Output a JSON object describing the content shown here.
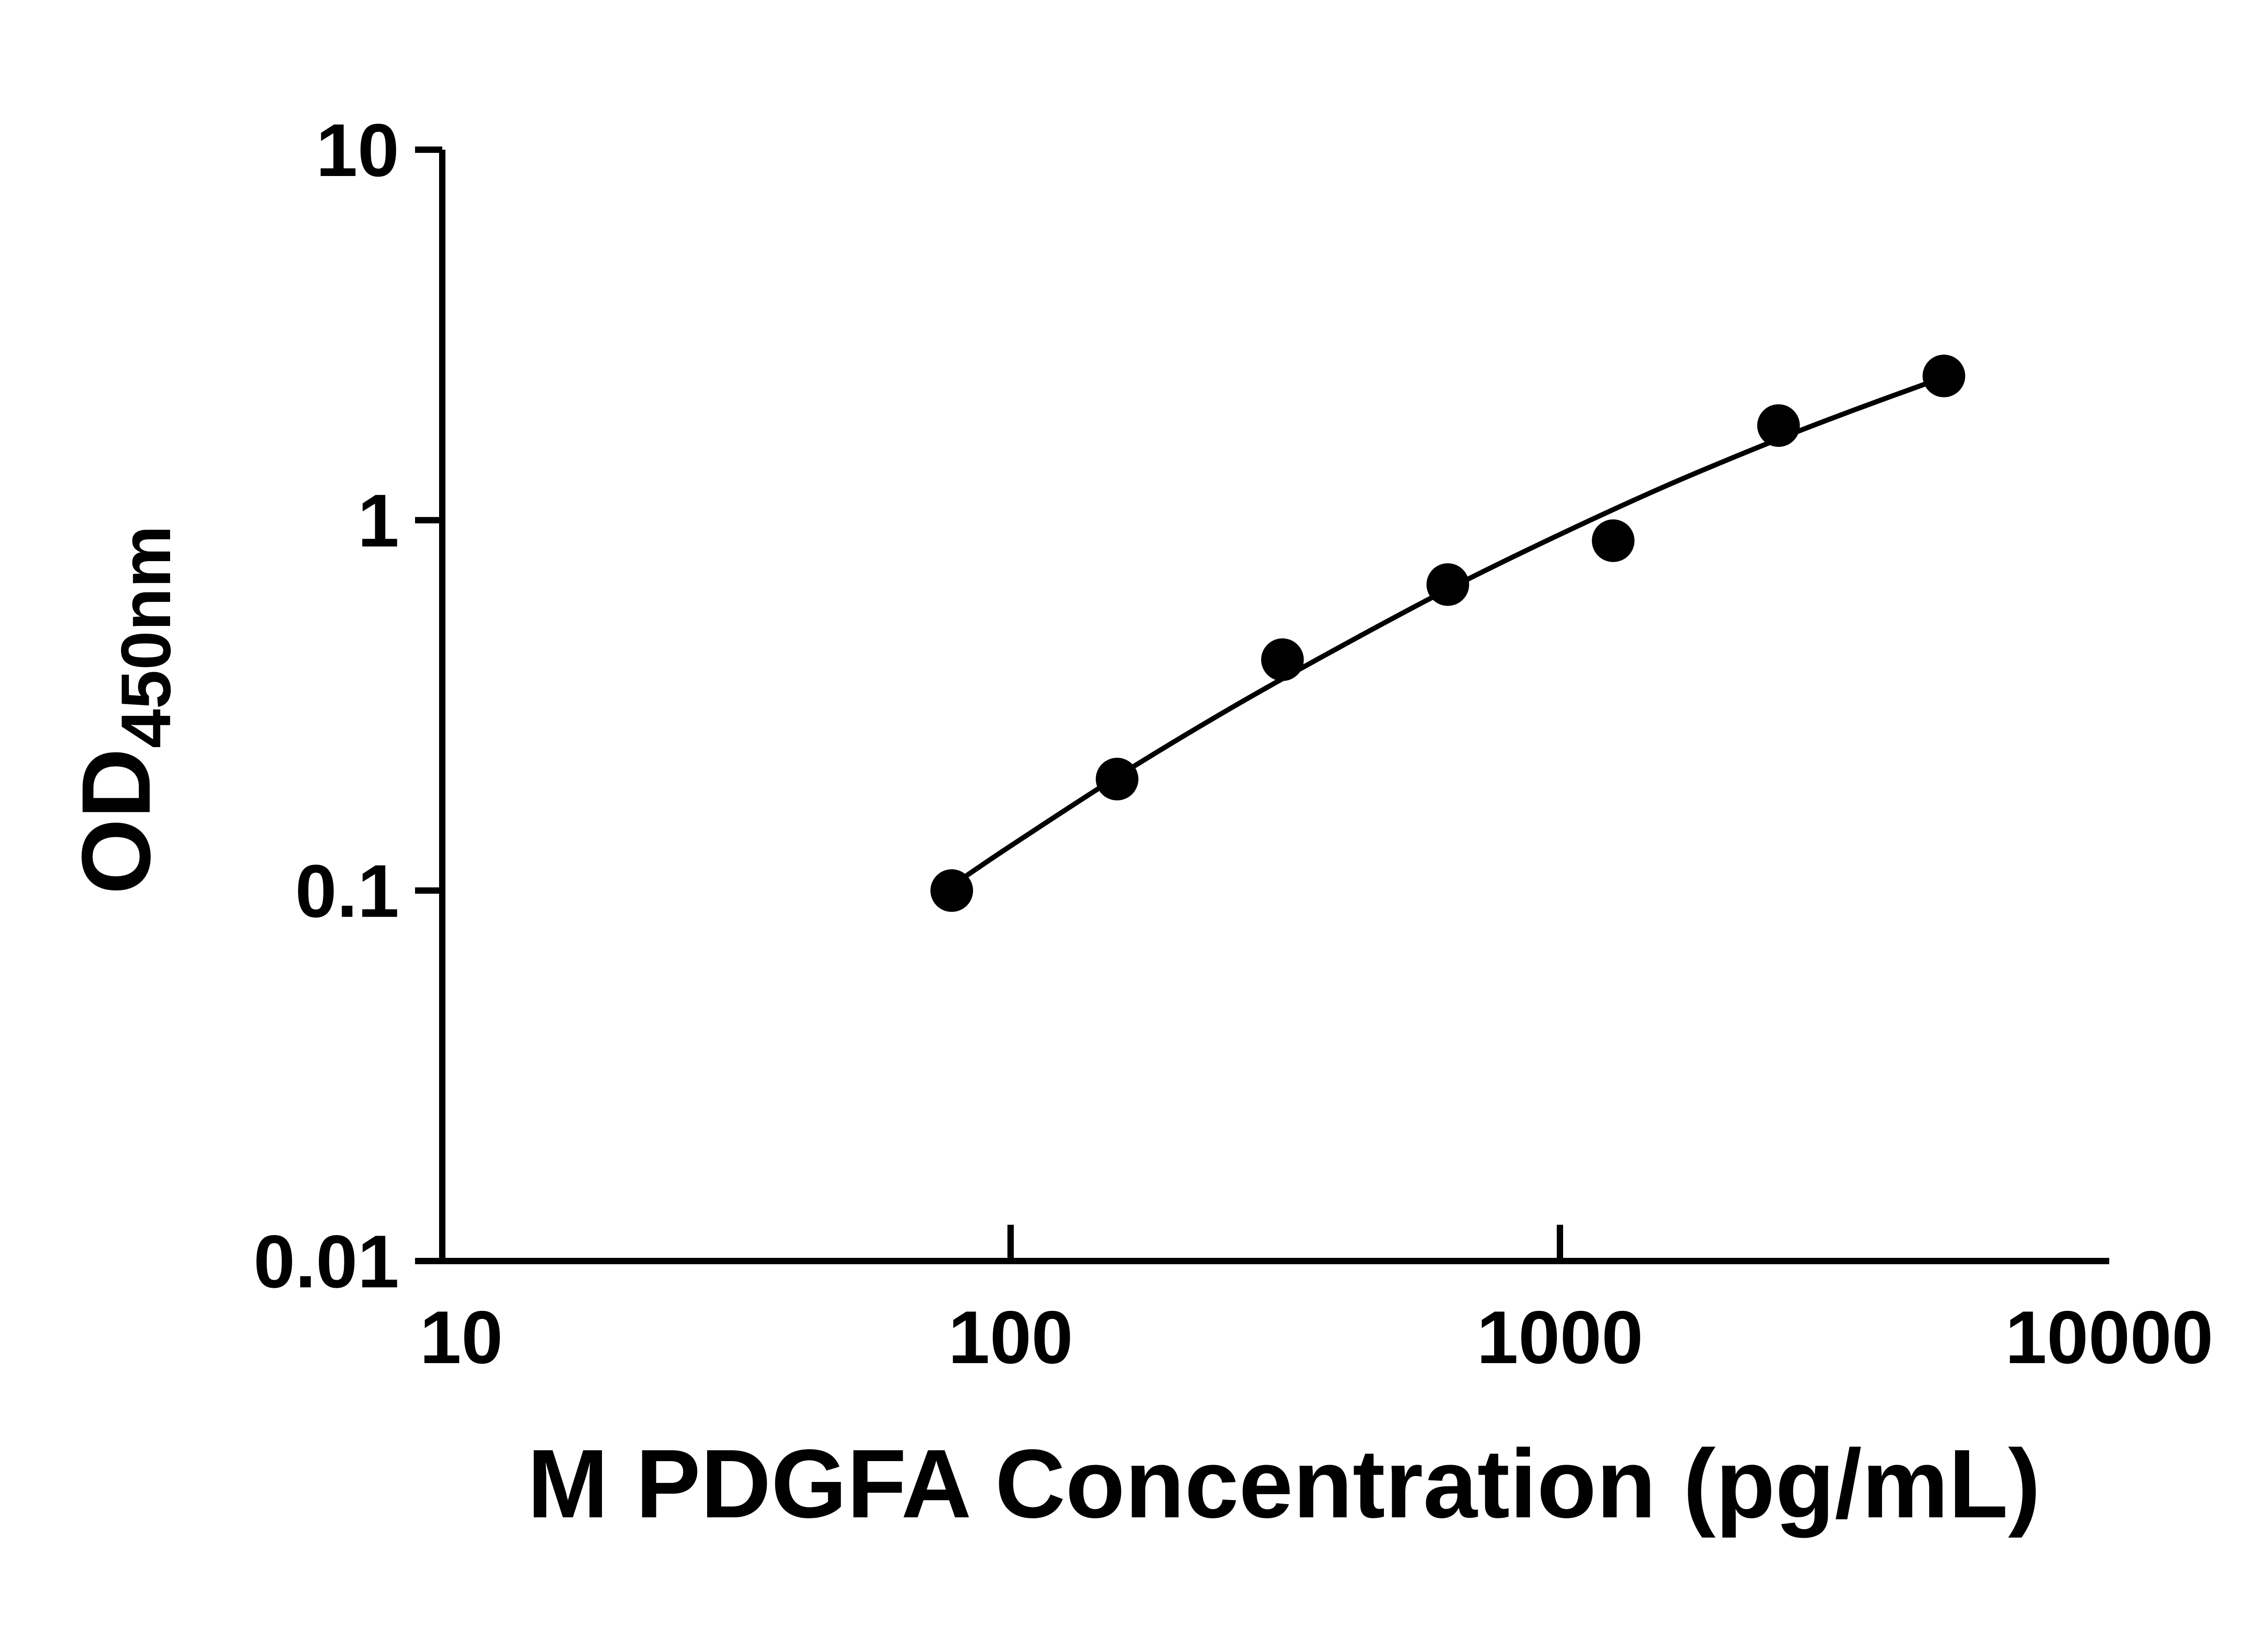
{
  "figure": {
    "background_color": "#ffffff",
    "foreground_color": "#000000"
  },
  "chart_data": {
    "type": "scatter",
    "title": "",
    "xlabel": "M PDGFA Concentration (pg/mL)",
    "ylabel": "OD450nm",
    "ylabel_base": "OD",
    "ylabel_subscript": "450nm",
    "x_scale": "log10",
    "y_scale": "log10",
    "xlim": [
      10,
      10000
    ],
    "ylim": [
      0.01,
      10
    ],
    "grid": false,
    "legend": "none",
    "marker_color": "#000000",
    "line_color": "#000000",
    "x_ticks": [
      {
        "value": 10,
        "label": "10"
      },
      {
        "value": 100,
        "label": "100"
      },
      {
        "value": 1000,
        "label": "1000"
      },
      {
        "value": 10000,
        "label": "10000"
      }
    ],
    "x_tick_marks": [
      100,
      1000
    ],
    "y_ticks": [
      {
        "value": 10,
        "label": "10"
      },
      {
        "value": 1,
        "label": "1"
      },
      {
        "value": 0.1,
        "label": "0.1"
      },
      {
        "value": 0.01,
        "label": "0.01"
      }
    ],
    "y_tick_marks": [
      10,
      1,
      0.1,
      0.01
    ],
    "points": [
      {
        "x": 78.125,
        "y": 0.1
      },
      {
        "x": 156.25,
        "y": 0.2
      },
      {
        "x": 312.5,
        "y": 0.42
      },
      {
        "x": 625,
        "y": 0.67
      },
      {
        "x": 1250,
        "y": 0.88
      },
      {
        "x": 2500,
        "y": 1.8
      },
      {
        "x": 5000,
        "y": 2.45
      }
    ],
    "fit_line": [
      {
        "x": 78.125,
        "y": 0.103
      },
      {
        "x": 100,
        "y": 0.132
      },
      {
        "x": 158,
        "y": 0.205
      },
      {
        "x": 251,
        "y": 0.31
      },
      {
        "x": 398,
        "y": 0.455
      },
      {
        "x": 631,
        "y": 0.655
      },
      {
        "x": 1000,
        "y": 0.915
      },
      {
        "x": 1585,
        "y": 1.25
      },
      {
        "x": 2512,
        "y": 1.66
      },
      {
        "x": 3548,
        "y": 2.02
      },
      {
        "x": 5000,
        "y": 2.43
      }
    ]
  }
}
